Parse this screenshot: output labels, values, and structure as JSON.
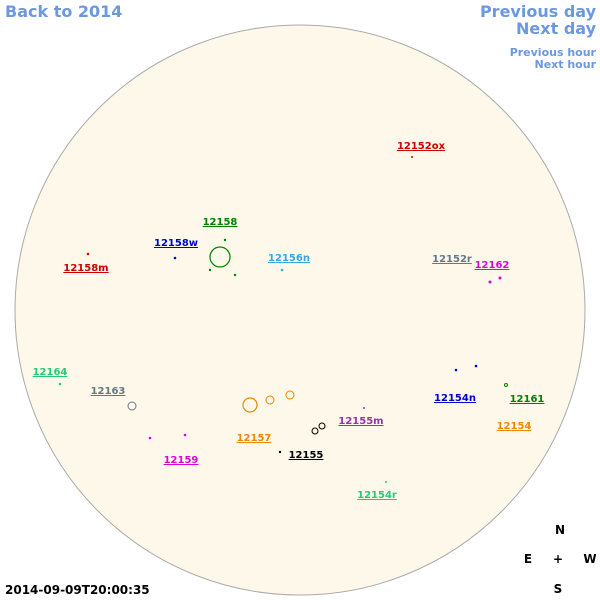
{
  "navigation": {
    "back": "Back to 2014",
    "previous_day": "Previous day",
    "next_day": "Next day",
    "previous_hour": "Previous hour",
    "next_hour": "Next hour"
  },
  "regions": [
    "12152ox",
    "12158",
    "12158w",
    "12158m",
    "12156n",
    "12152r",
    "12162",
    "12164",
    "12163",
    "12154n",
    "12161",
    "12155m",
    "12157",
    "12154",
    "12159",
    "12155",
    "12154r"
  ],
  "compass": {
    "north": "N",
    "east": "E",
    "center": "+",
    "west": "W",
    "south": "S"
  },
  "timestamp": "2014-09-09T20:00:35"
}
